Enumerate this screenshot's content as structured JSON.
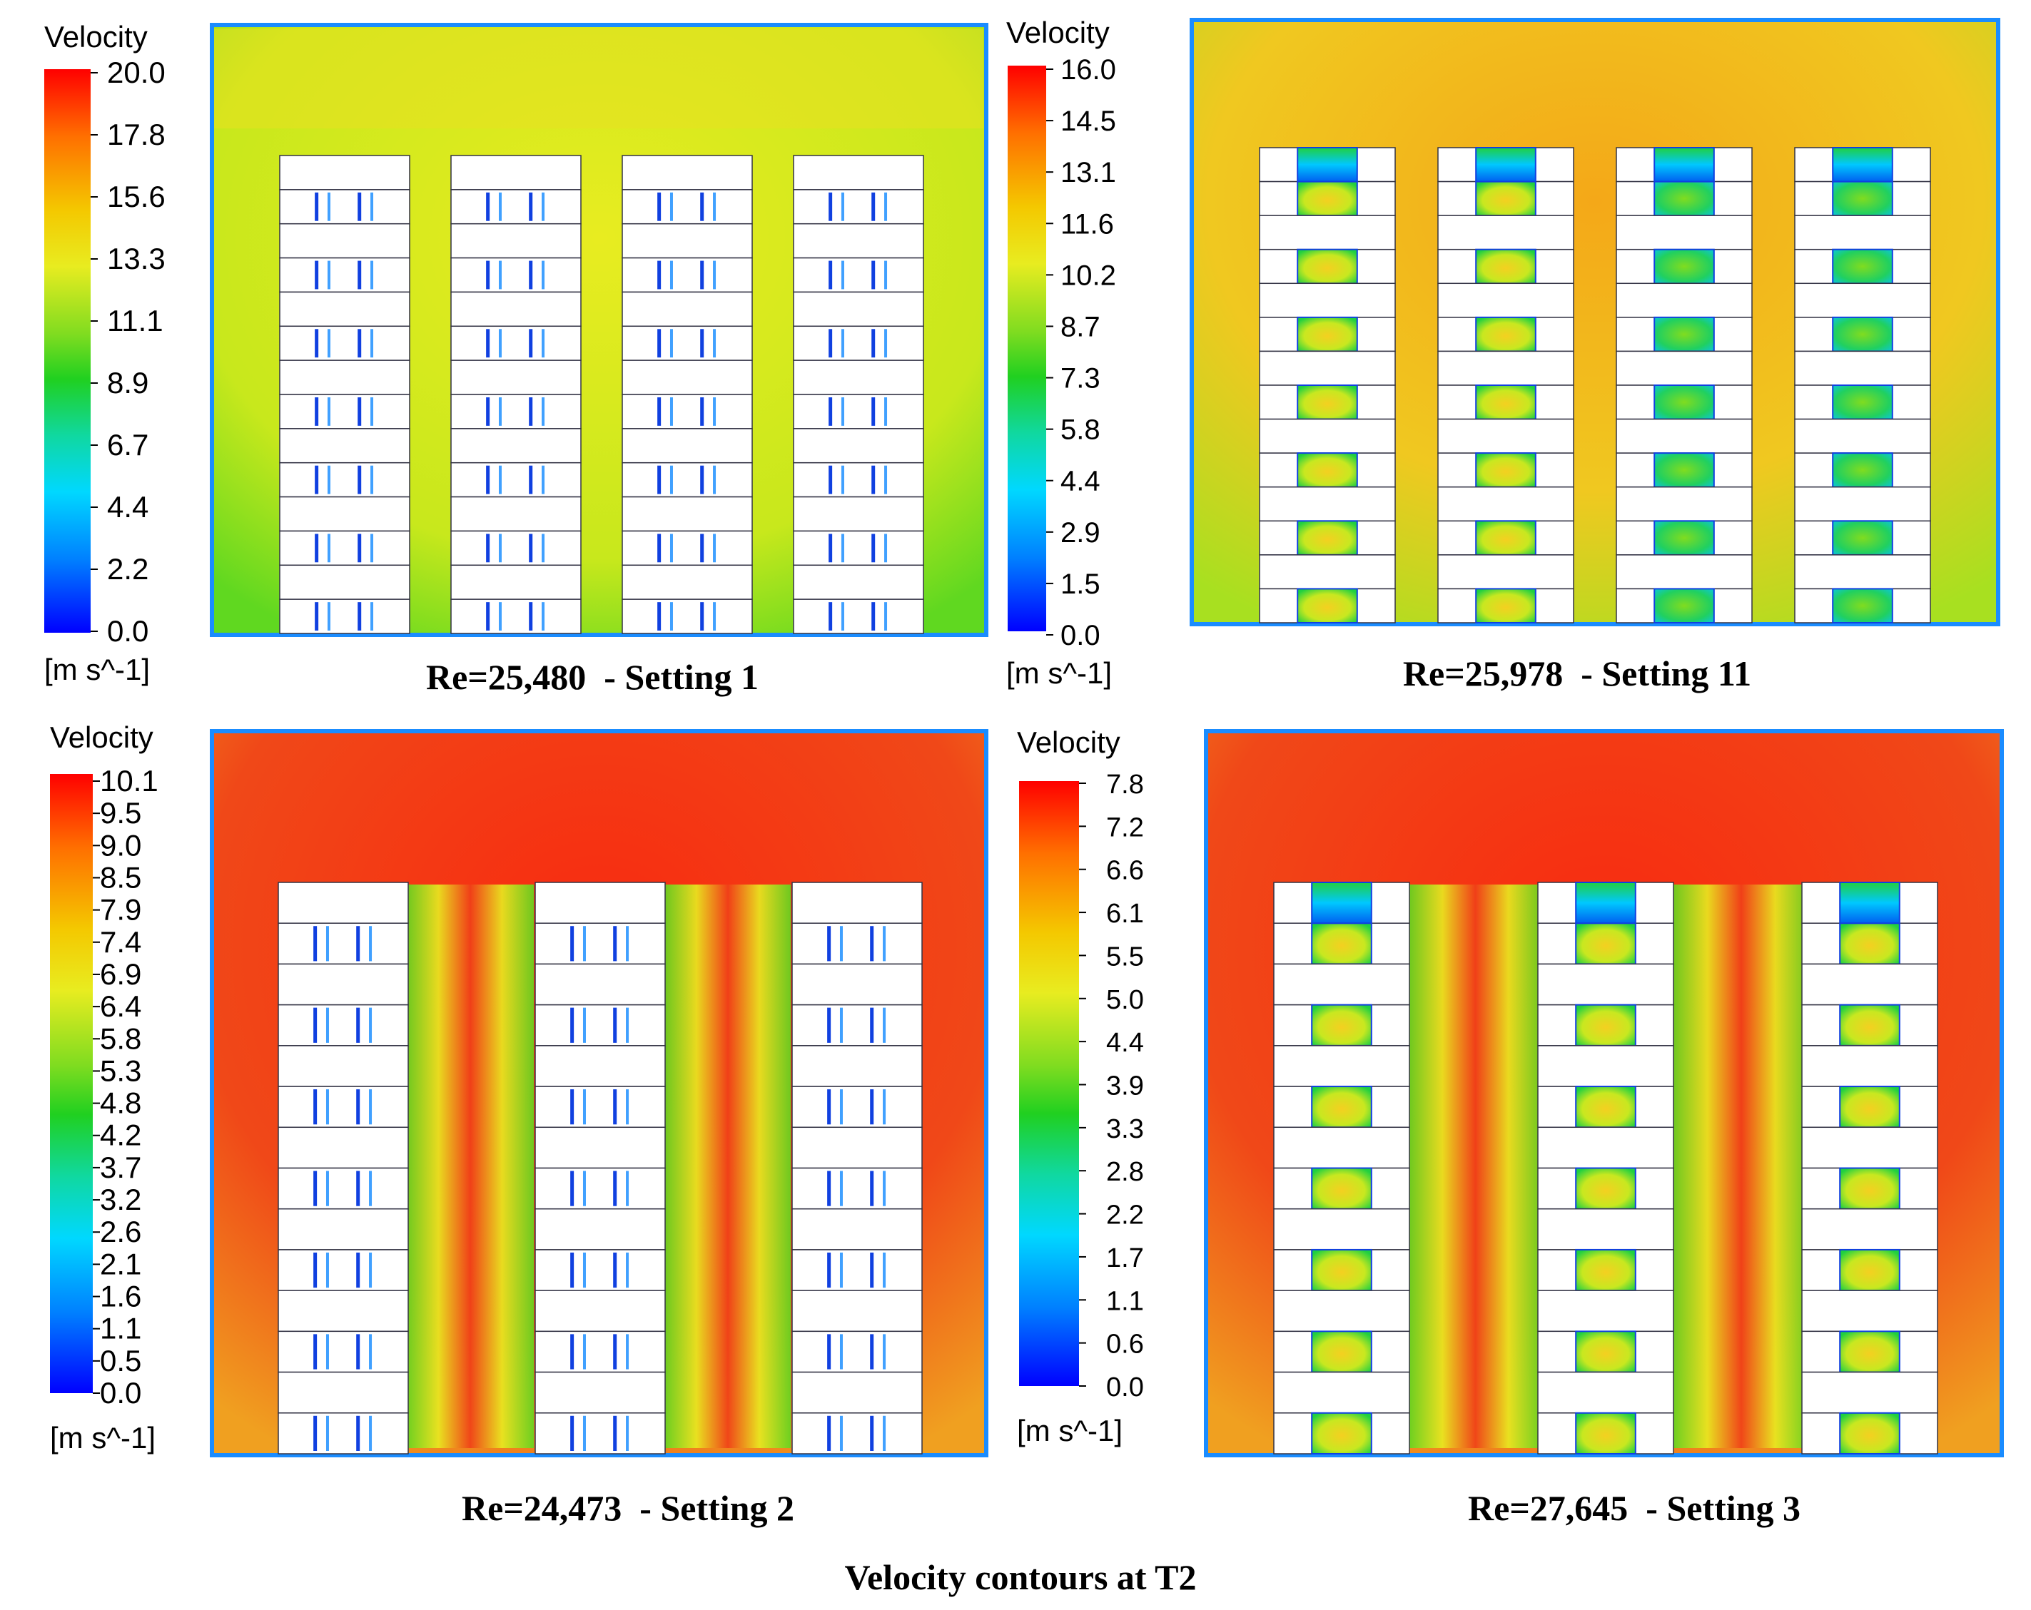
{
  "figure": {
    "title": "Velocity contours at T2"
  },
  "panels": [
    {
      "id": "setting-1",
      "caption": "Re=25,480  - Setting 1",
      "legend": {
        "title": "Velocity",
        "unit": "[m s^-1]",
        "ticks": [
          "20.0",
          "17.8",
          "15.6",
          "13.3",
          "11.1",
          "8.9",
          "6.7",
          "4.4",
          "2.2",
          "0.0"
        ]
      },
      "field_color": "#e8ec20"
    },
    {
      "id": "setting-11",
      "caption": "Re=25,978  - Setting 11",
      "legend": {
        "title": "Velocity",
        "unit": "[m s^-1]",
        "ticks": [
          "16.0",
          "14.5",
          "13.1",
          "11.6",
          "10.2",
          "8.7",
          "7.3",
          "5.8",
          "4.4",
          "2.9",
          "1.5",
          "0.0"
        ]
      },
      "field_color": "#f4b21a"
    },
    {
      "id": "setting-2",
      "caption": "Re=24,473  - Setting 2",
      "legend": {
        "title": "Velocity",
        "unit": "[m s^-1]",
        "ticks": [
          "10.1",
          "9.5",
          "9.0",
          "8.5",
          "7.9",
          "7.4",
          "6.9",
          "6.4",
          "5.8",
          "5.3",
          "4.8",
          "4.2",
          "3.7",
          "3.2",
          "2.6",
          "2.1",
          "1.6",
          "1.1",
          "0.5",
          "0.0"
        ]
      },
      "field_color": "#f03818"
    },
    {
      "id": "setting-3",
      "caption": "Re=27,645  - Setting 3",
      "legend": {
        "title": "Velocity",
        "unit": "[m s^-1]",
        "ticks": [
          "7.8",
          "7.2",
          "6.6",
          "6.1",
          "5.5",
          "5.0",
          "4.4",
          "3.9",
          "3.3",
          "2.8",
          "2.2",
          "1.7",
          "1.1",
          "0.6",
          "0.0"
        ]
      },
      "field_color": "#f03818"
    }
  ],
  "colormap": [
    "#ff0000",
    "#ff8000",
    "#f4c800",
    "#e8ec20",
    "#a0e020",
    "#20d020",
    "#10d8a0",
    "#00d8ff",
    "#0080ff",
    "#0000ff"
  ]
}
